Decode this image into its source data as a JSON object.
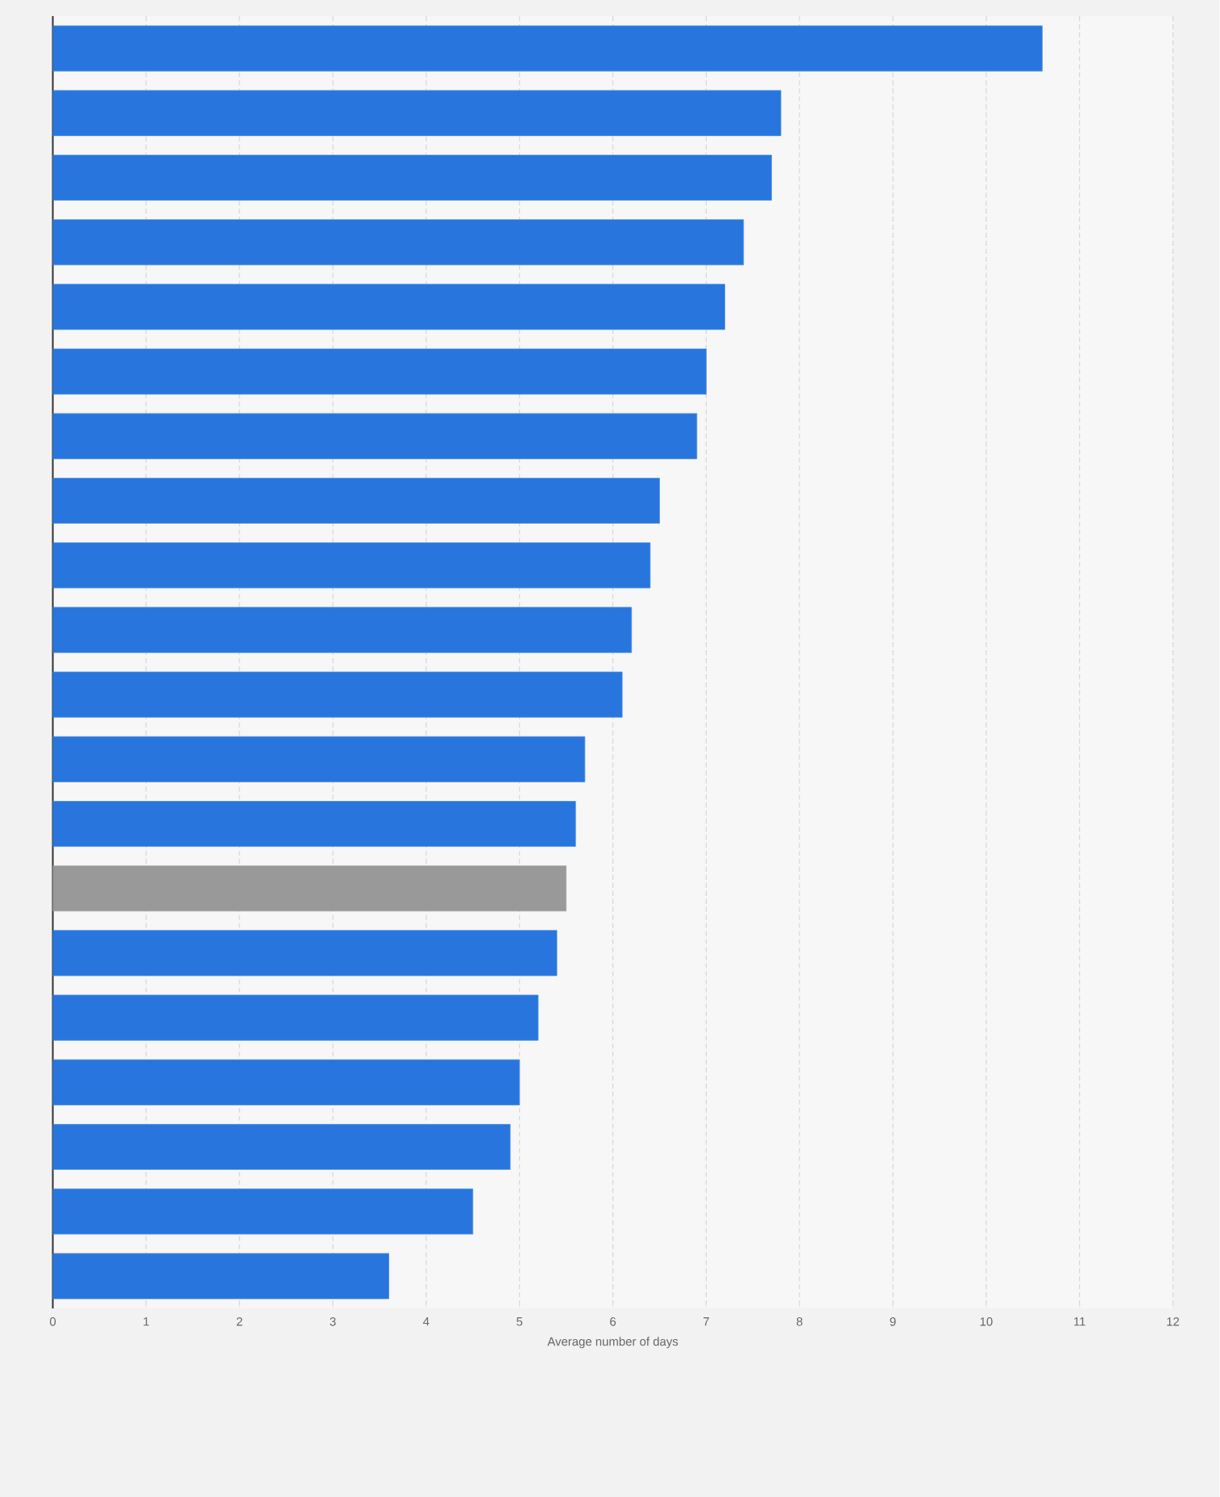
{
  "chart_data": {
    "type": "bar",
    "orientation": "horizontal",
    "categories": [
      null,
      null,
      null,
      null,
      null,
      null,
      null,
      null,
      null,
      null,
      null,
      null,
      null,
      null,
      null,
      null,
      null,
      null,
      null,
      null
    ],
    "values": [
      10.6,
      7.8,
      7.7,
      7.4,
      7.2,
      7.0,
      6.9,
      6.5,
      6.4,
      6.2,
      6.1,
      5.7,
      5.6,
      5.5,
      5.4,
      5.2,
      5.0,
      4.9,
      4.5,
      3.6
    ],
    "colors": [
      "#2876dd",
      "#2876dd",
      "#2876dd",
      "#2876dd",
      "#2876dd",
      "#2876dd",
      "#2876dd",
      "#2876dd",
      "#2876dd",
      "#2876dd",
      "#2876dd",
      "#2876dd",
      "#2876dd",
      "#999999",
      "#2876dd",
      "#2876dd",
      "#2876dd",
      "#2876dd",
      "#2876dd",
      "#2876dd"
    ],
    "xlabel": "Average number of days",
    "xlim": [
      0,
      12
    ],
    "xticks": [
      0,
      1,
      2,
      3,
      4,
      5,
      6,
      7,
      8,
      9,
      10,
      11,
      12
    ],
    "grid": "x"
  }
}
